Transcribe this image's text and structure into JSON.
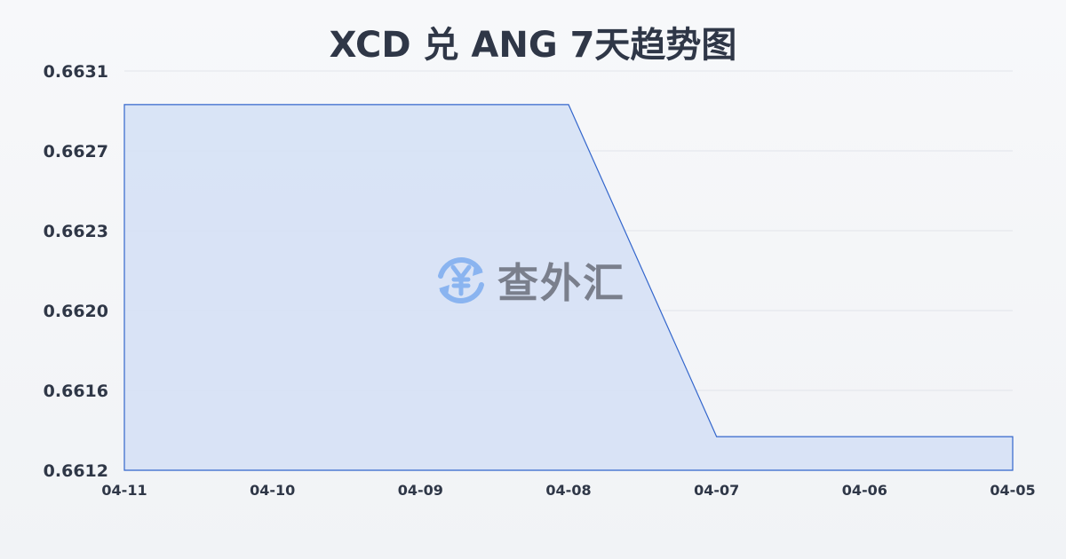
{
  "chart_data": {
    "type": "area",
    "title": "XCD 兑 ANG 7天趋势图",
    "xlabel": "",
    "ylabel": "",
    "categories": [
      "04-11",
      "04-10",
      "04-09",
      "04-08",
      "04-07",
      "04-06",
      "04-05"
    ],
    "values": [
      0.66294,
      0.66294,
      0.66294,
      0.66294,
      0.66136,
      0.66136,
      0.66136
    ],
    "y_ticks": [
      "0.6631",
      "0.6627",
      "0.6623",
      "0.6620",
      "0.6616",
      "0.6612"
    ],
    "ylim": [
      0.6612,
      0.6631
    ],
    "grid": true,
    "colors": {
      "line": "#3366cc",
      "fill": "#d6e1f5",
      "grid": "#e1e4ea"
    }
  },
  "watermark": {
    "text": "查外汇",
    "icon": "yen-exchange-icon",
    "icon_color": "#8ab4f0"
  }
}
